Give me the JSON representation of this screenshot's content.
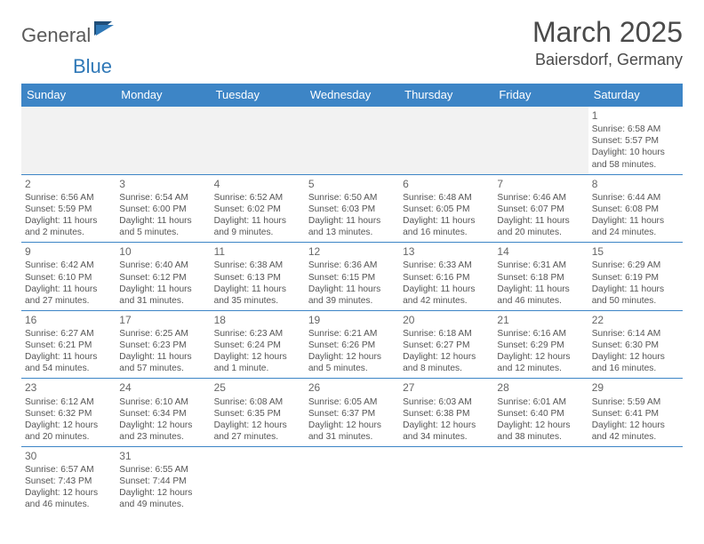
{
  "logo": {
    "part1": "General",
    "part2": "Blue"
  },
  "title": "March 2025",
  "location": "Baiersdorf, Germany",
  "colors": {
    "header_bg": "#3d85c6",
    "header_text": "#ffffff",
    "border": "#3d85c6",
    "text": "#555555",
    "logo_gray": "#5a5a5a",
    "logo_blue": "#2f78b7",
    "blank_bg": "#f2f2f2"
  },
  "typography": {
    "title_fontsize": 32,
    "location_fontsize": 18,
    "weekday_fontsize": 13,
    "daynum_fontsize": 12,
    "body_fontsize": 10.2
  },
  "weekdays": [
    "Sunday",
    "Monday",
    "Tuesday",
    "Wednesday",
    "Thursday",
    "Friday",
    "Saturday"
  ],
  "weeks": [
    [
      null,
      null,
      null,
      null,
      null,
      null,
      {
        "d": "1",
        "sr": "Sunrise: 6:58 AM",
        "ss": "Sunset: 5:57 PM",
        "dl": "Daylight: 10 hours and 58 minutes."
      }
    ],
    [
      {
        "d": "2",
        "sr": "Sunrise: 6:56 AM",
        "ss": "Sunset: 5:59 PM",
        "dl": "Daylight: 11 hours and 2 minutes."
      },
      {
        "d": "3",
        "sr": "Sunrise: 6:54 AM",
        "ss": "Sunset: 6:00 PM",
        "dl": "Daylight: 11 hours and 5 minutes."
      },
      {
        "d": "4",
        "sr": "Sunrise: 6:52 AM",
        "ss": "Sunset: 6:02 PM",
        "dl": "Daylight: 11 hours and 9 minutes."
      },
      {
        "d": "5",
        "sr": "Sunrise: 6:50 AM",
        "ss": "Sunset: 6:03 PM",
        "dl": "Daylight: 11 hours and 13 minutes."
      },
      {
        "d": "6",
        "sr": "Sunrise: 6:48 AM",
        "ss": "Sunset: 6:05 PM",
        "dl": "Daylight: 11 hours and 16 minutes."
      },
      {
        "d": "7",
        "sr": "Sunrise: 6:46 AM",
        "ss": "Sunset: 6:07 PM",
        "dl": "Daylight: 11 hours and 20 minutes."
      },
      {
        "d": "8",
        "sr": "Sunrise: 6:44 AM",
        "ss": "Sunset: 6:08 PM",
        "dl": "Daylight: 11 hours and 24 minutes."
      }
    ],
    [
      {
        "d": "9",
        "sr": "Sunrise: 6:42 AM",
        "ss": "Sunset: 6:10 PM",
        "dl": "Daylight: 11 hours and 27 minutes."
      },
      {
        "d": "10",
        "sr": "Sunrise: 6:40 AM",
        "ss": "Sunset: 6:12 PM",
        "dl": "Daylight: 11 hours and 31 minutes."
      },
      {
        "d": "11",
        "sr": "Sunrise: 6:38 AM",
        "ss": "Sunset: 6:13 PM",
        "dl": "Daylight: 11 hours and 35 minutes."
      },
      {
        "d": "12",
        "sr": "Sunrise: 6:36 AM",
        "ss": "Sunset: 6:15 PM",
        "dl": "Daylight: 11 hours and 39 minutes."
      },
      {
        "d": "13",
        "sr": "Sunrise: 6:33 AM",
        "ss": "Sunset: 6:16 PM",
        "dl": "Daylight: 11 hours and 42 minutes."
      },
      {
        "d": "14",
        "sr": "Sunrise: 6:31 AM",
        "ss": "Sunset: 6:18 PM",
        "dl": "Daylight: 11 hours and 46 minutes."
      },
      {
        "d": "15",
        "sr": "Sunrise: 6:29 AM",
        "ss": "Sunset: 6:19 PM",
        "dl": "Daylight: 11 hours and 50 minutes."
      }
    ],
    [
      {
        "d": "16",
        "sr": "Sunrise: 6:27 AM",
        "ss": "Sunset: 6:21 PM",
        "dl": "Daylight: 11 hours and 54 minutes."
      },
      {
        "d": "17",
        "sr": "Sunrise: 6:25 AM",
        "ss": "Sunset: 6:23 PM",
        "dl": "Daylight: 11 hours and 57 minutes."
      },
      {
        "d": "18",
        "sr": "Sunrise: 6:23 AM",
        "ss": "Sunset: 6:24 PM",
        "dl": "Daylight: 12 hours and 1 minute."
      },
      {
        "d": "19",
        "sr": "Sunrise: 6:21 AM",
        "ss": "Sunset: 6:26 PM",
        "dl": "Daylight: 12 hours and 5 minutes."
      },
      {
        "d": "20",
        "sr": "Sunrise: 6:18 AM",
        "ss": "Sunset: 6:27 PM",
        "dl": "Daylight: 12 hours and 8 minutes."
      },
      {
        "d": "21",
        "sr": "Sunrise: 6:16 AM",
        "ss": "Sunset: 6:29 PM",
        "dl": "Daylight: 12 hours and 12 minutes."
      },
      {
        "d": "22",
        "sr": "Sunrise: 6:14 AM",
        "ss": "Sunset: 6:30 PM",
        "dl": "Daylight: 12 hours and 16 minutes."
      }
    ],
    [
      {
        "d": "23",
        "sr": "Sunrise: 6:12 AM",
        "ss": "Sunset: 6:32 PM",
        "dl": "Daylight: 12 hours and 20 minutes."
      },
      {
        "d": "24",
        "sr": "Sunrise: 6:10 AM",
        "ss": "Sunset: 6:34 PM",
        "dl": "Daylight: 12 hours and 23 minutes."
      },
      {
        "d": "25",
        "sr": "Sunrise: 6:08 AM",
        "ss": "Sunset: 6:35 PM",
        "dl": "Daylight: 12 hours and 27 minutes."
      },
      {
        "d": "26",
        "sr": "Sunrise: 6:05 AM",
        "ss": "Sunset: 6:37 PM",
        "dl": "Daylight: 12 hours and 31 minutes."
      },
      {
        "d": "27",
        "sr": "Sunrise: 6:03 AM",
        "ss": "Sunset: 6:38 PM",
        "dl": "Daylight: 12 hours and 34 minutes."
      },
      {
        "d": "28",
        "sr": "Sunrise: 6:01 AM",
        "ss": "Sunset: 6:40 PM",
        "dl": "Daylight: 12 hours and 38 minutes."
      },
      {
        "d": "29",
        "sr": "Sunrise: 5:59 AM",
        "ss": "Sunset: 6:41 PM",
        "dl": "Daylight: 12 hours and 42 minutes."
      }
    ],
    [
      {
        "d": "30",
        "sr": "Sunrise: 6:57 AM",
        "ss": "Sunset: 7:43 PM",
        "dl": "Daylight: 12 hours and 46 minutes."
      },
      {
        "d": "31",
        "sr": "Sunrise: 6:55 AM",
        "ss": "Sunset: 7:44 PM",
        "dl": "Daylight: 12 hours and 49 minutes."
      },
      null,
      null,
      null,
      null,
      null
    ]
  ]
}
